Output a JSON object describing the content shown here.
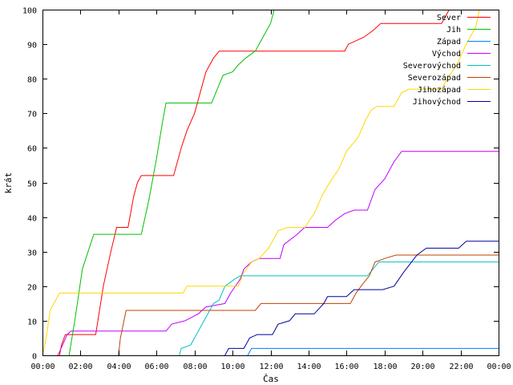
{
  "chart_data": {
    "type": "line",
    "xlabel": "Čas",
    "ylabel": "krát",
    "xlim": [
      0,
      24
    ],
    "ylim": [
      0,
      100
    ],
    "x_ticks": [
      0,
      2,
      4,
      6,
      8,
      10,
      12,
      14,
      16,
      18,
      20,
      22,
      24
    ],
    "x_tick_labels": [
      "00:00",
      "02:00",
      "04:00",
      "06:00",
      "08:00",
      "10:00",
      "12:00",
      "14:00",
      "16:00",
      "18:00",
      "20:00",
      "22:00",
      "00:00"
    ],
    "y_ticks": [
      0,
      10,
      20,
      30,
      40,
      50,
      60,
      70,
      80,
      90,
      100
    ],
    "y_tick_labels": [
      "0",
      "10",
      "20",
      "30",
      "40",
      "50",
      "60",
      "70",
      "80",
      "90",
      "100"
    ],
    "grid": false,
    "legend_position": "top-right",
    "series": [
      {
        "name": "Sever",
        "color": "#ff0000",
        "points": [
          [
            0.9,
            0
          ],
          [
            1.0,
            3
          ],
          [
            1.2,
            6
          ],
          [
            2.8,
            6
          ],
          [
            3.2,
            20
          ],
          [
            3.6,
            30
          ],
          [
            3.9,
            37
          ],
          [
            4.5,
            37
          ],
          [
            4.8,
            46
          ],
          [
            5.0,
            50
          ],
          [
            5.2,
            52
          ],
          [
            6.9,
            52
          ],
          [
            7.3,
            60
          ],
          [
            7.6,
            65
          ],
          [
            8.0,
            70
          ],
          [
            8.3,
            76
          ],
          [
            8.6,
            82
          ],
          [
            9.0,
            86
          ],
          [
            9.3,
            88
          ],
          [
            15.9,
            88
          ],
          [
            16.1,
            90
          ],
          [
            16.9,
            92
          ],
          [
            17.4,
            94
          ],
          [
            17.8,
            96
          ],
          [
            21.0,
            96
          ],
          [
            21.4,
            100
          ]
        ]
      },
      {
        "name": "Jih",
        "color": "#00c000",
        "points": [
          [
            1.4,
            0
          ],
          [
            1.7,
            10
          ],
          [
            2.1,
            25
          ],
          [
            2.7,
            35
          ],
          [
            5.2,
            35
          ],
          [
            5.6,
            45
          ],
          [
            6.0,
            57
          ],
          [
            6.3,
            67
          ],
          [
            6.5,
            73
          ],
          [
            8.9,
            73
          ],
          [
            9.2,
            77
          ],
          [
            9.5,
            81
          ],
          [
            10.0,
            82
          ],
          [
            10.3,
            84
          ],
          [
            10.7,
            86
          ],
          [
            11.2,
            88
          ],
          [
            11.6,
            92
          ],
          [
            12.0,
            96
          ],
          [
            12.2,
            100
          ]
        ]
      },
      {
        "name": "Západ",
        "color": "#0080ff",
        "points": [
          [
            10.8,
            0
          ],
          [
            11.0,
            2
          ],
          [
            24.0,
            2
          ]
        ]
      },
      {
        "name": "Východ",
        "color": "#c000ff",
        "points": [
          [
            0.8,
            0
          ],
          [
            0.9,
            1
          ],
          [
            1.3,
            6
          ],
          [
            1.5,
            7
          ],
          [
            6.5,
            7
          ],
          [
            6.8,
            9
          ],
          [
            7.5,
            10
          ],
          [
            8.2,
            12
          ],
          [
            8.6,
            14
          ],
          [
            9.6,
            15
          ],
          [
            9.9,
            18
          ],
          [
            10.4,
            22
          ],
          [
            10.6,
            25
          ],
          [
            11.0,
            27
          ],
          [
            11.4,
            28
          ],
          [
            12.5,
            28
          ],
          [
            12.7,
            32
          ],
          [
            13.4,
            35
          ],
          [
            13.8,
            37
          ],
          [
            15.0,
            37
          ],
          [
            15.4,
            39
          ],
          [
            15.9,
            41
          ],
          [
            16.4,
            42
          ],
          [
            17.1,
            42
          ],
          [
            17.5,
            48
          ],
          [
            18.0,
            51
          ],
          [
            18.5,
            56
          ],
          [
            18.9,
            59
          ],
          [
            24.0,
            59
          ]
        ]
      },
      {
        "name": "Severovýchod",
        "color": "#00c0c0",
        "points": [
          [
            7.2,
            0
          ],
          [
            7.3,
            2
          ],
          [
            7.8,
            3
          ],
          [
            8.5,
            10
          ],
          [
            9.0,
            15
          ],
          [
            9.3,
            16
          ],
          [
            9.6,
            20
          ],
          [
            10.1,
            22
          ],
          [
            10.4,
            23
          ],
          [
            17.1,
            23
          ],
          [
            17.4,
            25
          ],
          [
            17.7,
            27
          ],
          [
            24.0,
            27
          ]
        ]
      },
      {
        "name": "Severozápad",
        "color": "#c04000",
        "points": [
          [
            4.0,
            0
          ],
          [
            4.1,
            5
          ],
          [
            4.4,
            13
          ],
          [
            11.2,
            13
          ],
          [
            11.5,
            15
          ],
          [
            16.2,
            15
          ],
          [
            16.5,
            18
          ],
          [
            16.9,
            21
          ],
          [
            17.2,
            23
          ],
          [
            17.5,
            27
          ],
          [
            18.0,
            28
          ],
          [
            18.6,
            29
          ],
          [
            24.0,
            29
          ]
        ]
      },
      {
        "name": "Jihozápad",
        "color": "#ffd700",
        "points": [
          [
            0.0,
            0
          ],
          [
            0.2,
            5
          ],
          [
            0.4,
            13
          ],
          [
            0.9,
            18
          ],
          [
            7.4,
            18
          ],
          [
            7.6,
            20
          ],
          [
            10.3,
            20
          ],
          [
            10.6,
            24
          ],
          [
            11.0,
            27
          ],
          [
            11.4,
            28
          ],
          [
            11.9,
            31
          ],
          [
            12.4,
            36
          ],
          [
            12.9,
            37
          ],
          [
            13.8,
            37
          ],
          [
            14.3,
            41
          ],
          [
            14.7,
            46
          ],
          [
            15.0,
            49
          ],
          [
            15.6,
            54
          ],
          [
            16.0,
            59
          ],
          [
            16.6,
            63
          ],
          [
            17.0,
            68
          ],
          [
            17.3,
            71
          ],
          [
            17.6,
            72
          ],
          [
            18.5,
            72
          ],
          [
            18.9,
            76
          ],
          [
            19.3,
            77
          ],
          [
            21.0,
            77
          ],
          [
            21.3,
            80
          ],
          [
            21.8,
            84
          ],
          [
            22.3,
            90
          ],
          [
            22.8,
            95
          ],
          [
            23.0,
            100
          ]
        ]
      },
      {
        "name": "Jihovýchod",
        "color": "#0000a0",
        "points": [
          [
            9.6,
            0
          ],
          [
            9.8,
            2
          ],
          [
            10.6,
            2
          ],
          [
            10.9,
            5
          ],
          [
            11.3,
            6
          ],
          [
            12.1,
            6
          ],
          [
            12.4,
            9
          ],
          [
            13.0,
            10
          ],
          [
            13.3,
            12
          ],
          [
            14.3,
            12
          ],
          [
            14.8,
            15
          ],
          [
            15.0,
            17
          ],
          [
            16.0,
            17
          ],
          [
            16.4,
            19
          ],
          [
            17.9,
            19
          ],
          [
            18.5,
            20
          ],
          [
            19.0,
            24
          ],
          [
            19.7,
            29
          ],
          [
            20.2,
            31
          ],
          [
            21.9,
            31
          ],
          [
            22.3,
            33
          ],
          [
            24.0,
            33
          ]
        ]
      }
    ]
  }
}
